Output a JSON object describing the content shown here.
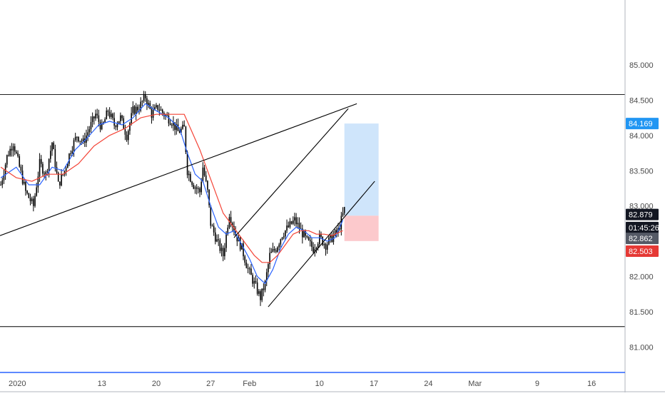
{
  "chart_data": {
    "type": "candlestick",
    "title": "",
    "xlabel": "",
    "ylabel": "",
    "ylim": [
      80.64,
      85.92
    ],
    "yticks": [
      81.0,
      81.5,
      82.0,
      82.5,
      83.0,
      83.5,
      84.0,
      84.5,
      85.0
    ],
    "ytick_labels": [
      "81.000",
      "81.500",
      "82.000",
      "82.500",
      "83.000",
      "83.500",
      "84.000",
      "84.500",
      "85.000"
    ],
    "xticks": [
      {
        "label": "2020",
        "day": 0
      },
      {
        "label": "13",
        "day": 12
      },
      {
        "label": "20",
        "day": 19
      },
      {
        "label": "27",
        "day": 26
      },
      {
        "label": "Feb",
        "day": 31
      },
      {
        "label": "10",
        "day": 40
      },
      {
        "label": "17",
        "day": 47
      },
      {
        "label": "24",
        "day": 54
      },
      {
        "label": "Mar",
        "day": 60
      },
      {
        "label": "9",
        "day": 68
      },
      {
        "label": "16",
        "day": 75
      }
    ],
    "xlim": [
      -1.1,
      79.3
    ],
    "grid": false,
    "close_path": [
      [
        -1.0,
        83.3
      ],
      [
        -0.2,
        83.7
      ],
      [
        0.6,
        83.9
      ],
      [
        1.4,
        83.55
      ],
      [
        2.2,
        83.2
      ],
      [
        3.2,
        83.0
      ],
      [
        4.0,
        83.6
      ],
      [
        4.8,
        83.45
      ],
      [
        5.6,
        83.9
      ],
      [
        6.4,
        83.3
      ],
      [
        7.2,
        83.5
      ],
      [
        8.0,
        83.8
      ],
      [
        8.8,
        84.0
      ],
      [
        9.6,
        83.9
      ],
      [
        10.4,
        84.1
      ],
      [
        11.2,
        84.3
      ],
      [
        12.0,
        84.1
      ],
      [
        12.8,
        84.35
      ],
      [
        13.6,
        84.15
      ],
      [
        14.4,
        84.25
      ],
      [
        15.2,
        84.0
      ],
      [
        16.0,
        84.35
      ],
      [
        16.8,
        84.4
      ],
      [
        17.6,
        84.55
      ],
      [
        18.4,
        84.3
      ],
      [
        19.2,
        84.4
      ],
      [
        20.0,
        84.3
      ],
      [
        21.0,
        84.2
      ],
      [
        21.8,
        84.05
      ],
      [
        22.6,
        84.1
      ],
      [
        23.0,
        83.5
      ],
      [
        23.8,
        83.3
      ],
      [
        24.6,
        83.2
      ],
      [
        25.0,
        83.55
      ],
      [
        25.6,
        83.2
      ],
      [
        26.0,
        82.75
      ],
      [
        26.8,
        82.5
      ],
      [
        27.6,
        82.3
      ],
      [
        28.0,
        82.6
      ],
      [
        28.4,
        82.9
      ],
      [
        29.2,
        82.6
      ],
      [
        30.0,
        82.4
      ],
      [
        30.8,
        82.1
      ],
      [
        31.6,
        81.9
      ],
      [
        32.4,
        81.7
      ],
      [
        33.0,
        81.9
      ],
      [
        33.6,
        82.3
      ],
      [
        34.4,
        82.4
      ],
      [
        35.2,
        82.6
      ],
      [
        36.0,
        82.7
      ],
      [
        36.8,
        82.8
      ],
      [
        37.6,
        82.65
      ],
      [
        38.4,
        82.5
      ],
      [
        39.2,
        82.4
      ],
      [
        40.0,
        82.55
      ],
      [
        40.8,
        82.45
      ],
      [
        41.6,
        82.55
      ],
      [
        42.4,
        82.65
      ],
      [
        43.2,
        82.95
      ]
    ],
    "moving_averages": [
      {
        "color": "#2962ff",
        "values": [
          [
            -1.0,
            83.4
          ],
          [
            1.0,
            83.55
          ],
          [
            2.6,
            83.3
          ],
          [
            4.0,
            83.3
          ],
          [
            5.6,
            83.55
          ],
          [
            7.0,
            83.5
          ],
          [
            8.6,
            83.8
          ],
          [
            10.0,
            83.95
          ],
          [
            11.6,
            84.15
          ],
          [
            13.0,
            84.2
          ],
          [
            14.6,
            84.15
          ],
          [
            16.0,
            84.25
          ],
          [
            17.6,
            84.45
          ],
          [
            19.0,
            84.35
          ],
          [
            20.6,
            84.25
          ],
          [
            22.0,
            84.1
          ],
          [
            23.0,
            83.75
          ],
          [
            24.0,
            83.45
          ],
          [
            25.0,
            83.35
          ],
          [
            26.0,
            83.0
          ],
          [
            27.0,
            82.7
          ],
          [
            28.0,
            82.6
          ],
          [
            29.0,
            82.65
          ],
          [
            30.0,
            82.45
          ],
          [
            31.0,
            82.25
          ],
          [
            32.0,
            82.0
          ],
          [
            33.0,
            81.9
          ],
          [
            34.0,
            82.1
          ],
          [
            35.0,
            82.4
          ],
          [
            36.0,
            82.6
          ],
          [
            37.0,
            82.7
          ],
          [
            38.0,
            82.65
          ],
          [
            39.0,
            82.55
          ],
          [
            40.0,
            82.55
          ],
          [
            41.0,
            82.5
          ],
          [
            42.0,
            82.55
          ],
          [
            43.0,
            82.8
          ]
        ]
      },
      {
        "color": "#f44336",
        "values": [
          [
            -1.0,
            83.55
          ],
          [
            1.0,
            83.4
          ],
          [
            3.0,
            83.35
          ],
          [
            5.0,
            83.45
          ],
          [
            7.0,
            83.45
          ],
          [
            9.0,
            83.6
          ],
          [
            11.0,
            83.85
          ],
          [
            13.0,
            84.0
          ],
          [
            15.0,
            84.1
          ],
          [
            17.0,
            84.25
          ],
          [
            19.0,
            84.3
          ],
          [
            21.0,
            84.3
          ],
          [
            22.6,
            84.3
          ],
          [
            23.6,
            84.05
          ],
          [
            24.6,
            83.8
          ],
          [
            25.6,
            83.5
          ],
          [
            26.6,
            83.2
          ],
          [
            27.6,
            82.9
          ],
          [
            28.6,
            82.75
          ],
          [
            29.6,
            82.6
          ],
          [
            30.6,
            82.45
          ],
          [
            31.6,
            82.3
          ],
          [
            32.6,
            82.2
          ],
          [
            33.6,
            82.2
          ],
          [
            34.6,
            82.3
          ],
          [
            35.6,
            82.45
          ],
          [
            36.6,
            82.6
          ],
          [
            37.6,
            82.65
          ],
          [
            38.6,
            82.65
          ],
          [
            39.6,
            82.6
          ],
          [
            40.6,
            82.6
          ],
          [
            41.6,
            82.58
          ],
          [
            43.0,
            82.65
          ]
        ]
      }
    ],
    "trendlines": [
      {
        "from": [
          -1.1,
          82.58
        ],
        "to": [
          44.8,
          84.45
        ],
        "color": "#000000"
      },
      {
        "from": [
          29.0,
          82.55
        ],
        "to": [
          43.7,
          84.38
        ],
        "color": "#000000"
      },
      {
        "from": [
          33.4,
          81.57
        ],
        "to": [
          47.1,
          83.35
        ],
        "color": "#000000"
      }
    ],
    "horizontal_lines": [
      {
        "y": 84.58,
        "color": "#000000"
      },
      {
        "y": 81.29,
        "color": "#000000"
      }
    ],
    "position": {
      "entry": 82.862,
      "target": 84.169,
      "stop": 82.503,
      "x_start": 43.2,
      "x_end": 47.6,
      "profit_color": "#cfe5fb",
      "loss_color": "#fcc9cc"
    },
    "price_badges": [
      {
        "value": "84.169",
        "y": 84.169,
        "color": "#2196f3"
      },
      {
        "value": "82.879",
        "y": 82.879,
        "color": "#131722"
      },
      {
        "value": "01:45:26",
        "y": 82.695,
        "color": "#131722"
      },
      {
        "value": "82.862",
        "y": 82.54,
        "color": "#555a66"
      },
      {
        "value": "82.503",
        "y": 82.36,
        "color": "#e53935"
      }
    ]
  }
}
